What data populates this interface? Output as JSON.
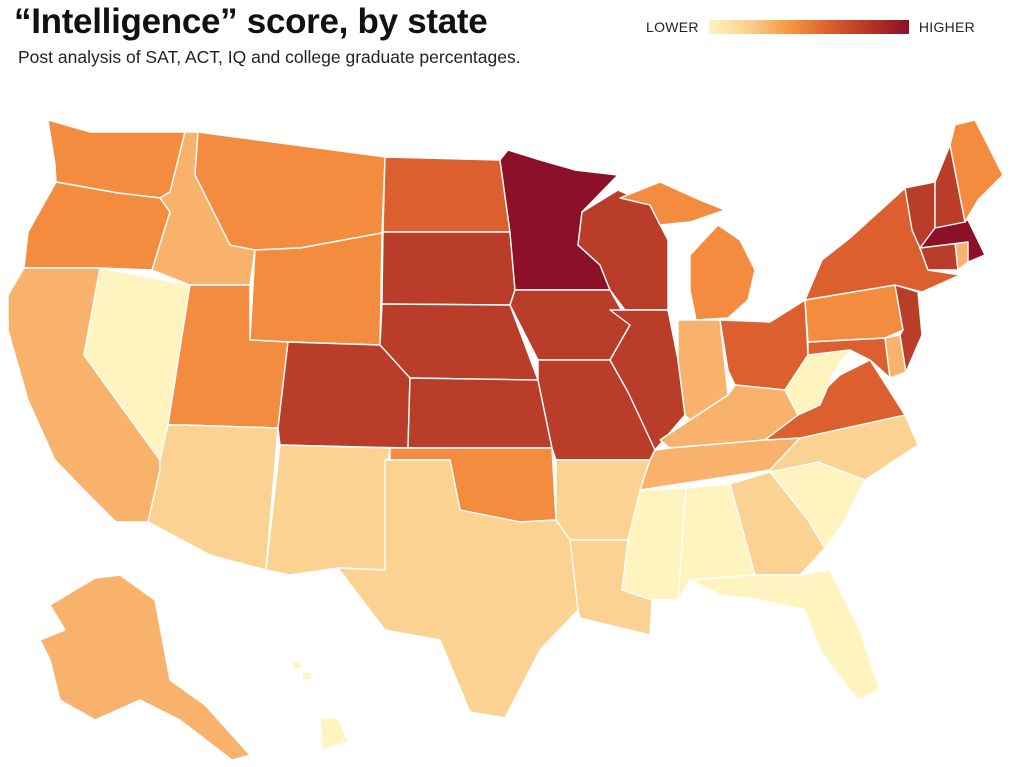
{
  "title": "“Intelligence” score, by state",
  "subtitle": "Post analysis of SAT, ACT, IQ and college graduate percentages.",
  "legend": {
    "low_label": "LOWER",
    "high_label": "HIGHER",
    "colors": [
      "#fff2bf",
      "#fbd08e",
      "#f5973f",
      "#dc5f2e",
      "#b73525",
      "#8a0f28"
    ]
  },
  "map": {
    "type": "choropleth",
    "scale": "relative score, lower to higher",
    "classes": {
      "1": "#fff3c0",
      "2": "#fbd291",
      "3": "#f8b26c",
      "4": "#f48c3f",
      "5": "#dc5f30",
      "6": "#b93d28",
      "7": "#8c1028"
    },
    "states": [
      {
        "code": "WA",
        "level": 4
      },
      {
        "code": "OR",
        "level": 4
      },
      {
        "code": "CA",
        "level": 3
      },
      {
        "code": "NV",
        "level": 1
      },
      {
        "code": "ID",
        "level": 3
      },
      {
        "code": "MT",
        "level": 4
      },
      {
        "code": "WY",
        "level": 4
      },
      {
        "code": "UT",
        "level": 4
      },
      {
        "code": "AZ",
        "level": 2
      },
      {
        "code": "CO",
        "level": 6
      },
      {
        "code": "NM",
        "level": 2
      },
      {
        "code": "ND",
        "level": 5
      },
      {
        "code": "SD",
        "level": 6
      },
      {
        "code": "NE",
        "level": 6
      },
      {
        "code": "KS",
        "level": 6
      },
      {
        "code": "OK",
        "level": 4
      },
      {
        "code": "TX",
        "level": 2
      },
      {
        "code": "MN",
        "level": 7
      },
      {
        "code": "IA",
        "level": 6
      },
      {
        "code": "MO",
        "level": 6
      },
      {
        "code": "AR",
        "level": 2
      },
      {
        "code": "LA",
        "level": 2
      },
      {
        "code": "WI",
        "level": 6
      },
      {
        "code": "IL",
        "level": 6
      },
      {
        "code": "MI",
        "level": 4
      },
      {
        "code": "IN",
        "level": 3
      },
      {
        "code": "OH",
        "level": 5
      },
      {
        "code": "KY",
        "level": 3
      },
      {
        "code": "TN",
        "level": 3
      },
      {
        "code": "MS",
        "level": 1
      },
      {
        "code": "AL",
        "level": 1
      },
      {
        "code": "GA",
        "level": 2
      },
      {
        "code": "FL",
        "level": 1
      },
      {
        "code": "SC",
        "level": 1
      },
      {
        "code": "NC",
        "level": 2
      },
      {
        "code": "VA",
        "level": 5
      },
      {
        "code": "WV",
        "level": 1
      },
      {
        "code": "MD",
        "level": 5
      },
      {
        "code": "DE",
        "level": 3
      },
      {
        "code": "NJ",
        "level": 6
      },
      {
        "code": "PA",
        "level": 4
      },
      {
        "code": "NY",
        "level": 5
      },
      {
        "code": "CT",
        "level": 6
      },
      {
        "code": "RI",
        "level": 3
      },
      {
        "code": "MA",
        "level": 7
      },
      {
        "code": "VT",
        "level": 6
      },
      {
        "code": "NH",
        "level": 6
      },
      {
        "code": "ME",
        "level": 4
      },
      {
        "code": "AK",
        "level": 3
      },
      {
        "code": "HI",
        "level": 1
      }
    ]
  }
}
